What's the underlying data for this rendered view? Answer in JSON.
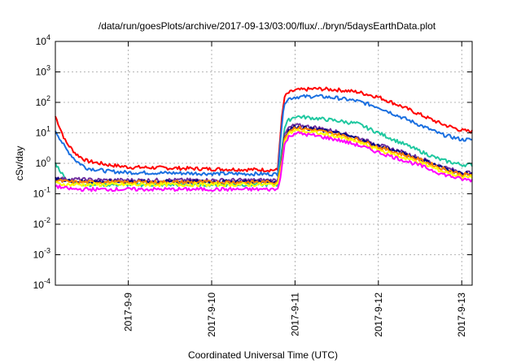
{
  "chart_data": {
    "type": "line",
    "title": "/data/run/goesPlots/archive/2017-09-13/03:00/flux/../bryn/5daysEarthData.plot",
    "xlabel": "Coordinated Universal Time (UTC)",
    "ylabel": "cSv/day",
    "yscale": "log",
    "ylim": [
      0.0001,
      10000
    ],
    "xlim": [
      "2017-09-08T03:00",
      "2017-09-13T03:00"
    ],
    "grid": true,
    "y_ticks": [
      {
        "base": "10",
        "exp": "-4"
      },
      {
        "base": "10",
        "exp": "-3"
      },
      {
        "base": "10",
        "exp": "-2"
      },
      {
        "base": "10",
        "exp": "-1"
      },
      {
        "base": "10",
        "exp": "0"
      },
      {
        "base": "10",
        "exp": "1"
      },
      {
        "base": "10",
        "exp": "2"
      },
      {
        "base": "10",
        "exp": "3"
      },
      {
        "base": "10",
        "exp": "4"
      }
    ],
    "x_ticks": [
      {
        "date": "2017-09-09T00:00",
        "label": "2017-9-9"
      },
      {
        "date": "2017-09-10T00:00",
        "label": "2017-9-10"
      },
      {
        "date": "2017-09-11T00:00",
        "label": "2017-9-11"
      },
      {
        "date": "2017-09-12T00:00",
        "label": "2017-9-12"
      },
      {
        "date": "2017-09-13T00:00",
        "label": "2017-9-13"
      }
    ],
    "x": [
      "2017-09-08T03:00",
      "2017-09-08T06:00",
      "2017-09-08T09:00",
      "2017-09-08T12:00",
      "2017-09-08T18:00",
      "2017-09-09T00:00",
      "2017-09-09T12:00",
      "2017-09-10T00:00",
      "2017-09-10T12:00",
      "2017-09-10T19:00",
      "2017-09-10T20:00",
      "2017-09-10T21:00",
      "2017-09-10T22:00",
      "2017-09-11T00:00",
      "2017-09-11T06:00",
      "2017-09-11T12:00",
      "2017-09-11T18:00",
      "2017-09-12T00:00",
      "2017-09-12T06:00",
      "2017-09-12T12:00",
      "2017-09-12T18:00",
      "2017-09-13T00:00",
      "2017-09-13T03:00"
    ],
    "series": [
      {
        "color": "#ff0000",
        "values": [
          35,
          5,
          2,
          1.2,
          0.9,
          0.75,
          0.7,
          0.65,
          0.62,
          0.6,
          20,
          150,
          200,
          250,
          280,
          260,
          220,
          150,
          80,
          40,
          20,
          12,
          11
        ]
      },
      {
        "color": "#1a6fe0",
        "values": [
          12,
          3,
          1.2,
          0.7,
          0.55,
          0.5,
          0.48,
          0.46,
          0.45,
          0.44,
          12,
          100,
          130,
          150,
          160,
          140,
          110,
          70,
          35,
          18,
          9,
          6,
          6
        ]
      },
      {
        "color": "#20c8a0",
        "values": [
          1,
          0.3,
          0.22,
          0.2,
          0.2,
          0.2,
          0.2,
          0.2,
          0.2,
          0.2,
          2,
          15,
          25,
          35,
          30,
          25,
          20,
          10,
          5,
          2.5,
          1.3,
          0.9,
          0.9
        ]
      },
      {
        "color": "#7030a0",
        "values": [
          0.35,
          0.3,
          0.3,
          0.29,
          0.28,
          0.28,
          0.28,
          0.28,
          0.28,
          0.28,
          1,
          8,
          14,
          18,
          15,
          11,
          7,
          4,
          2.5,
          1.5,
          0.8,
          0.5,
          0.5
        ]
      },
      {
        "color": "#000080",
        "values": [
          0.3,
          0.27,
          0.26,
          0.25,
          0.25,
          0.25,
          0.25,
          0.25,
          0.25,
          0.25,
          0.9,
          7,
          12,
          16,
          13,
          10,
          6.5,
          3.7,
          2.3,
          1.4,
          0.75,
          0.46,
          0.45
        ]
      },
      {
        "color": "#ff8000",
        "values": [
          0.28,
          0.25,
          0.24,
          0.24,
          0.24,
          0.24,
          0.24,
          0.24,
          0.24,
          0.24,
          0.85,
          6.5,
          11,
          15,
          12,
          9,
          6,
          3.4,
          2.1,
          1.3,
          0.7,
          0.43,
          0.42
        ]
      },
      {
        "color": "#ffff00",
        "values": [
          0.22,
          0.2,
          0.2,
          0.2,
          0.2,
          0.2,
          0.2,
          0.2,
          0.2,
          0.2,
          0.7,
          5,
          9,
          12,
          10,
          7.5,
          5,
          2.8,
          1.7,
          1.05,
          0.57,
          0.36,
          0.35
        ]
      },
      {
        "color": "#ff00ff",
        "values": [
          0.18,
          0.15,
          0.14,
          0.14,
          0.14,
          0.14,
          0.14,
          0.14,
          0.14,
          0.14,
          0.5,
          4,
          7,
          10,
          8,
          6,
          4,
          2.3,
          1.4,
          0.85,
          0.46,
          0.3,
          0.28
        ]
      }
    ]
  }
}
